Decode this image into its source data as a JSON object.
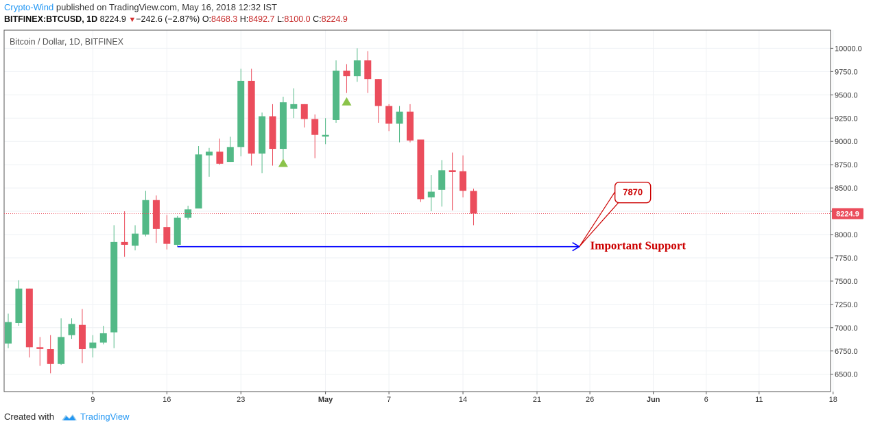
{
  "header": {
    "author": "Crypto-Wind",
    "published": "published on TradingView.com, May 16, 2018 12:32 IST",
    "symbol": "BITFINEX:BTCUSD, 1D",
    "last": "8224.9",
    "change_arrow": "▼",
    "change": "−242.6 (−2.87%)",
    "o_label": "O:",
    "o": "8468.3",
    "h_label": "H:",
    "h": "8492.7",
    "l_label": "L:",
    "l": "8100.0",
    "c_label": "C:",
    "c": "8224.9"
  },
  "footer": {
    "created_with": "Created with",
    "brand": "TradingView"
  },
  "colors": {
    "up": "#53b987",
    "down": "#eb4d5c",
    "support_line": "#0000ff",
    "annotation": "#cc0000",
    "price_label_bg": "#eb4d5c",
    "arrow_marker": "#8bc34a"
  },
  "chart_data": {
    "type": "candlestick",
    "title": "Bitcoin / Dollar, 1D, BITFINEX",
    "ylim": [
      6325,
      10125
    ],
    "y_ticks": [
      6500,
      6750,
      7000,
      7250,
      7500,
      7750,
      8000,
      8250,
      8500,
      8750,
      9000,
      9250,
      9500,
      9750,
      10000
    ],
    "y_tick_labels": [
      "6500.0",
      "6750.0",
      "7000.0",
      "7250.0",
      "7500.0",
      "7750.0",
      "8000.0",
      "8250.0",
      "8500.0",
      "8750.0",
      "9000.0",
      "9250.0",
      "9500.0",
      "9750.0",
      "10000.0"
    ],
    "x_tick_labels": [
      {
        "label": "9",
        "day": 8
      },
      {
        "label": "16",
        "day": 15
      },
      {
        "label": "23",
        "day": 22
      },
      {
        "label": "May",
        "day": 30,
        "bold": true
      },
      {
        "label": "7",
        "day": 36
      },
      {
        "label": "14",
        "day": 43
      },
      {
        "label": "21",
        "day": 50
      },
      {
        "label": "26",
        "day": 55
      },
      {
        "label": "Jun",
        "day": 61,
        "bold": true
      },
      {
        "label": "6",
        "day": 66
      },
      {
        "label": "11",
        "day": 71
      },
      {
        "label": "18",
        "day": 78
      }
    ],
    "candles": [
      {
        "date": "Apr 1",
        "o": 6830,
        "h": 7150,
        "l": 6780,
        "c": 7060
      },
      {
        "date": "Apr 2",
        "o": 7050,
        "h": 7510,
        "l": 7020,
        "c": 7420
      },
      {
        "date": "Apr 3",
        "o": 7420,
        "h": 7420,
        "l": 6680,
        "c": 6790
      },
      {
        "date": "Apr 4",
        "o": 6790,
        "h": 6900,
        "l": 6590,
        "c": 6780
      },
      {
        "date": "Apr 5",
        "o": 6770,
        "h": 6920,
        "l": 6510,
        "c": 6610
      },
      {
        "date": "Apr 6",
        "o": 6610,
        "h": 7100,
        "l": 6600,
        "c": 6900
      },
      {
        "date": "Apr 7",
        "o": 6920,
        "h": 7100,
        "l": 6880,
        "c": 7040
      },
      {
        "date": "Apr 8",
        "o": 7030,
        "h": 7200,
        "l": 6620,
        "c": 6770
      },
      {
        "date": "Apr 9",
        "o": 6780,
        "h": 6920,
        "l": 6680,
        "c": 6840
      },
      {
        "date": "Apr 10",
        "o": 6840,
        "h": 7020,
        "l": 6820,
        "c": 6940
      },
      {
        "date": "Apr 11",
        "o": 6950,
        "h": 8100,
        "l": 6780,
        "c": 7920
      },
      {
        "date": "Apr 12",
        "o": 7920,
        "h": 8250,
        "l": 7760,
        "c": 7890
      },
      {
        "date": "Apr 13",
        "o": 7880,
        "h": 8100,
        "l": 7830,
        "c": 8010
      },
      {
        "date": "Apr 14",
        "o": 8000,
        "h": 8470,
        "l": 7980,
        "c": 8370
      },
      {
        "date": "Apr 15",
        "o": 8370,
        "h": 8420,
        "l": 7910,
        "c": 8060
      },
      {
        "date": "Apr 16",
        "o": 8080,
        "h": 8210,
        "l": 7840,
        "c": 7900
      },
      {
        "date": "Apr 17",
        "o": 7890,
        "h": 8200,
        "l": 7870,
        "c": 8180
      },
      {
        "date": "Apr 18",
        "o": 8180,
        "h": 8310,
        "l": 8160,
        "c": 8270
      },
      {
        "date": "Apr 19",
        "o": 8280,
        "h": 8950,
        "l": 8280,
        "c": 8860
      },
      {
        "date": "Apr 20",
        "o": 8850,
        "h": 8930,
        "l": 8620,
        "c": 8890
      },
      {
        "date": "Apr 21",
        "o": 8890,
        "h": 9030,
        "l": 8750,
        "c": 8760
      },
      {
        "date": "Apr 22",
        "o": 8780,
        "h": 9050,
        "l": 8780,
        "c": 8940
      },
      {
        "date": "Apr 23",
        "o": 8940,
        "h": 9780,
        "l": 8840,
        "c": 9650
      },
      {
        "date": "Apr 24",
        "o": 9650,
        "h": 9780,
        "l": 8740,
        "c": 8870
      },
      {
        "date": "Apr 25",
        "o": 8870,
        "h": 9310,
        "l": 8660,
        "c": 9270
      },
      {
        "date": "Apr 26",
        "o": 9270,
        "h": 9400,
        "l": 8740,
        "c": 8920
      },
      {
        "date": "Apr 27",
        "o": 8920,
        "h": 9480,
        "l": 8790,
        "c": 9420
      },
      {
        "date": "Apr 28",
        "o": 9350,
        "h": 9570,
        "l": 9250,
        "c": 9400
      },
      {
        "date": "Apr 29",
        "o": 9400,
        "h": 9400,
        "l": 9150,
        "c": 9240
      },
      {
        "date": "Apr 30",
        "o": 9240,
        "h": 9290,
        "l": 8820,
        "c": 9070
      },
      {
        "date": "May 1",
        "o": 9060,
        "h": 9250,
        "l": 8970,
        "c": 9070
      },
      {
        "date": "May 2",
        "o": 9230,
        "h": 9870,
        "l": 9200,
        "c": 9760
      },
      {
        "date": "May 3",
        "o": 9760,
        "h": 9830,
        "l": 9520,
        "c": 9700
      },
      {
        "date": "May 4",
        "o": 9700,
        "h": 10000,
        "l": 9640,
        "c": 9870
      },
      {
        "date": "May 5",
        "o": 9870,
        "h": 9970,
        "l": 9520,
        "c": 9670
      },
      {
        "date": "May 6",
        "o": 9670,
        "h": 9670,
        "l": 9200,
        "c": 9380
      },
      {
        "date": "May 7",
        "o": 9380,
        "h": 9400,
        "l": 9110,
        "c": 9190
      },
      {
        "date": "May 8",
        "o": 9190,
        "h": 9380,
        "l": 8990,
        "c": 9320
      },
      {
        "date": "May 9",
        "o": 9320,
        "h": 9400,
        "l": 8990,
        "c": 9010
      },
      {
        "date": "May 10",
        "o": 9020,
        "h": 9020,
        "l": 8350,
        "c": 8380
      },
      {
        "date": "May 11",
        "o": 8400,
        "h": 8640,
        "l": 8250,
        "c": 8460
      },
      {
        "date": "May 12",
        "o": 8480,
        "h": 8800,
        "l": 8300,
        "c": 8690
      },
      {
        "date": "May 13",
        "o": 8690,
        "h": 8880,
        "l": 8260,
        "c": 8670
      },
      {
        "date": "May 14",
        "o": 8680,
        "h": 8850,
        "l": 8400,
        "c": 8470
      },
      {
        "date": "May 15",
        "o": 8468.3,
        "h": 8492.7,
        "l": 8100,
        "c": 8224.9
      }
    ],
    "arrow_markers": [
      {
        "date": "Apr 27",
        "price": 8770
      },
      {
        "date": "May 3",
        "price": 9430
      }
    ],
    "current_price": {
      "value": 8224.9,
      "label": "8224.9"
    },
    "support": {
      "value": 7870,
      "from_date": "Apr 17",
      "to_day": 54,
      "callout": "7870",
      "label": "Important Support"
    }
  }
}
